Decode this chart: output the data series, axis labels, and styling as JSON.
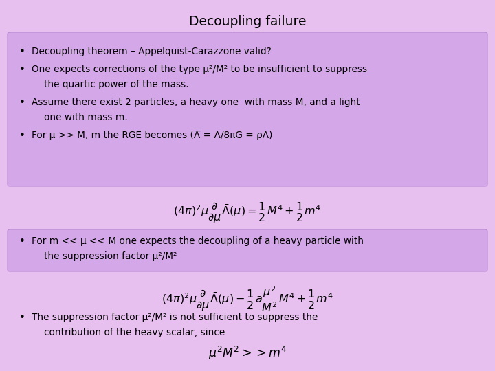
{
  "title": "Decoupling failure",
  "bg_color": "#e8c0f0",
  "box1_color": "#d4a8e8",
  "box2_color": "#d4a8e8",
  "title_fontsize": 13.5,
  "text_fontsize": 9.8,
  "eq_fontsize": 11.5,
  "bullet1": "Decoupling theorem – Appelquist-Carazzone valid?",
  "bullet2a": "One expects corrections of the type μ²/M² to be insufficient to suppress",
  "bullet2b": "the quartic power of the mass.",
  "bullet3a": "Assume there exist 2 particles, a heavy one  with mass M, and a light",
  "bullet3b": "one with mass m.",
  "bullet4": "For μ >> M, m the RGE becomes (Λ̅ = Λ/8πG = ρΛ)",
  "eq1": "$(4\\pi)^2\\mu\\dfrac{\\partial}{\\partial\\mu}\\bar{\\Lambda}(\\mu)=\\dfrac{1}{2}M^4+\\dfrac{1}{2}m^4$",
  "bullet5a": "For m << μ << M one expects the decoupling of a heavy particle with",
  "bullet5b": "the suppression factor μ²/M²",
  "eq2": "$(4\\pi)^2\\mu\\dfrac{\\partial}{\\partial\\mu}\\bar{\\Lambda}(\\mu)-\\dfrac{1}{2}a\\dfrac{\\mu^2}{M^2}M^4+\\dfrac{1}{2}m^4$",
  "bullet6a": "The suppression factor μ²/M² is not sufficient to suppress the",
  "bullet6b": "contribution of the heavy scalar, since",
  "eq3": "$\\mu^2 M^2 >> m^4$"
}
